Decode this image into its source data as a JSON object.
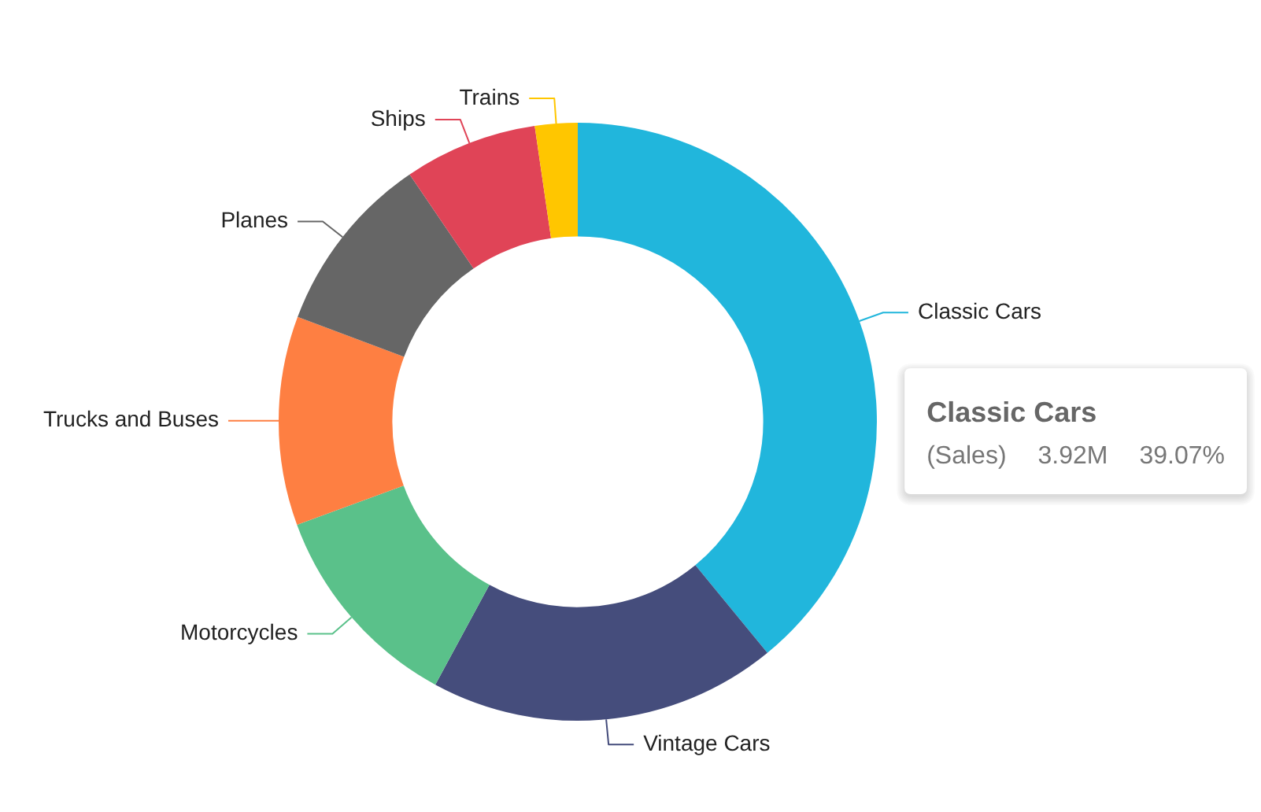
{
  "chart_data": {
    "type": "donut",
    "categories": [
      "Classic Cars",
      "Vintage Cars",
      "Motorcycles",
      "Trucks and Buses",
      "Planes",
      "Ships",
      "Trains"
    ],
    "values": [
      39.07,
      18.83,
      11.5,
      11.3,
      9.8,
      7.2,
      2.3
    ],
    "colors": [
      "#21b6dc",
      "#454d7c",
      "#5ac18a",
      "#fe7f42",
      "#666666",
      "#e04457",
      "#ffc600"
    ],
    "annotations": [
      "Classic Cars",
      "(Sales)",
      "3.92M",
      "39.07%"
    ]
  }
}
